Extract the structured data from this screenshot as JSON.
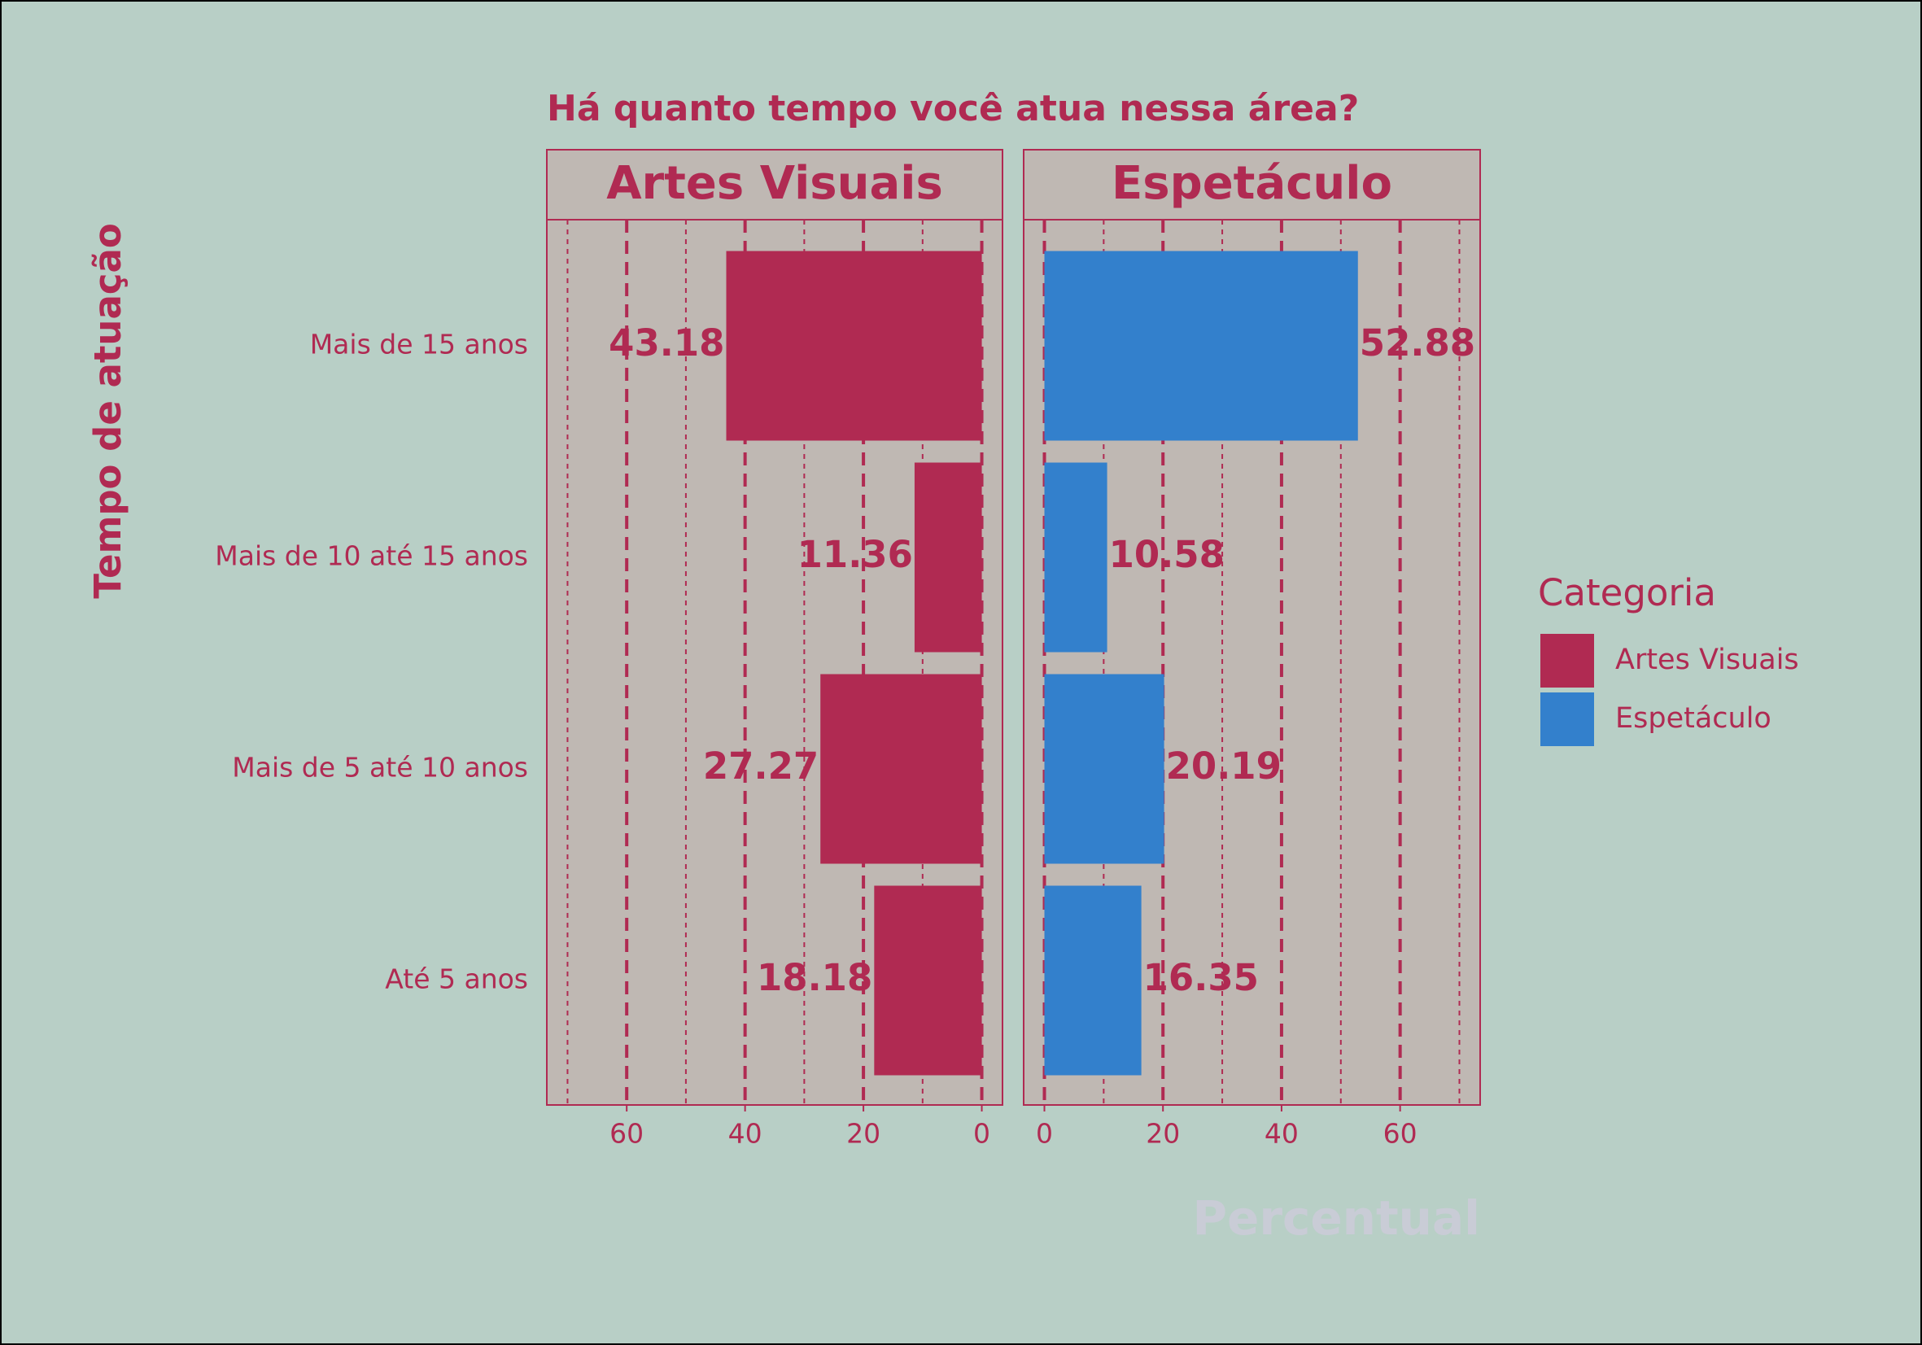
{
  "chart_data": {
    "type": "bar",
    "orientation": "horizontal",
    "title": "Há quanto tempo você atua nessa área?",
    "y_label": "Tempo de atuação",
    "x_label": "Percentual",
    "legend_title": "Categoria",
    "categories": [
      "Mais de 15 anos",
      "Mais de 10 até 15 anos",
      "Mais de 5 até 10 anos",
      "Até 5 anos"
    ],
    "series": [
      {
        "name": "Artes Visuais",
        "color": "#b02a52",
        "values": [
          43.18,
          11.36,
          27.27,
          18.18
        ],
        "xlim": [
          73.5,
          -3.5
        ],
        "xticks": [
          60,
          40,
          20,
          0
        ],
        "minor_xticks": [
          70,
          50,
          30,
          10
        ]
      },
      {
        "name": "Espetáculo",
        "color": "#3380cc",
        "values": [
          52.88,
          10.58,
          20.19,
          16.35
        ],
        "xlim": [
          -3.5,
          73.5
        ],
        "xticks": [
          0,
          20,
          40,
          60
        ],
        "minor_xticks": [
          10,
          30,
          50,
          70
        ]
      }
    ],
    "grid": true
  }
}
